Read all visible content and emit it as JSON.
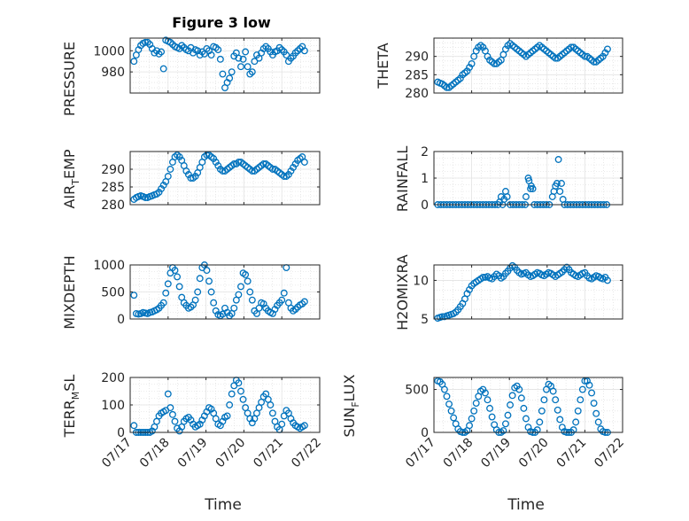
{
  "figure": {
    "title": "Figure 3 low",
    "marker_color": "#0072BD"
  },
  "chart_data": [
    {
      "type": "scatter",
      "title": "Figure 3 low",
      "ylabel": "PRESSURE",
      "ylim": [
        960,
        1012
      ],
      "yticks": [
        980,
        1000
      ],
      "xlim": [
        0,
        5
      ],
      "xticks": [
        "07/17",
        "07/18",
        "07/19",
        "07/20",
        "07/21",
        "07/22"
      ],
      "x": [
        0.1,
        0.16,
        0.22,
        0.28,
        0.34,
        0.4,
        0.46,
        0.52,
        0.58,
        0.64,
        0.7,
        0.76,
        0.82,
        0.88,
        0.94,
        1.0,
        1.06,
        1.12,
        1.18,
        1.24,
        1.3,
        1.36,
        1.42,
        1.48,
        1.54,
        1.6,
        1.66,
        1.72,
        1.78,
        1.84,
        1.9,
        1.96,
        2.02,
        2.08,
        2.14,
        2.2,
        2.26,
        2.32,
        2.38,
        2.44,
        2.5,
        2.56,
        2.62,
        2.68,
        2.74,
        2.8,
        2.86,
        2.92,
        2.98,
        3.04,
        3.1,
        3.16,
        3.22,
        3.28,
        3.34,
        3.4,
        3.46,
        3.52,
        3.58,
        3.64,
        3.7,
        3.76,
        3.82,
        3.88,
        3.94,
        4.0,
        4.06,
        4.12,
        4.18,
        4.24,
        4.3,
        4.36,
        4.42,
        4.48,
        4.54,
        4.6
      ],
      "y": [
        990,
        996,
        1001,
        1005,
        1007,
        1008,
        1008,
        1006,
        1002,
        998,
        1000,
        997,
        999,
        983,
        1010,
        1009,
        1008,
        1006,
        1004,
        1003,
        1002,
        1005,
        1003,
        1001,
        1000,
        1003,
        998,
        1001,
        1000,
        996,
        999,
        997,
        1002,
        1000,
        996,
        1004,
        1003,
        1001,
        992,
        978,
        965,
        970,
        974,
        980,
        995,
        998,
        993,
        985,
        992,
        999,
        985,
        978,
        980,
        990,
        996,
        993,
        998,
        1002,
        1004,
        1002,
        999,
        996,
        999,
        1000,
        1003,
        1001,
        999,
        996,
        990,
        993,
        995,
        998,
        1000,
        1002,
        1004,
        1000
      ]
    },
    {
      "type": "scatter",
      "ylabel": "THETA",
      "ylim": [
        280,
        295
      ],
      "yticks": [
        280,
        285,
        290
      ],
      "xlim": [
        0,
        5
      ],
      "xticks": [
        "07/17",
        "07/18",
        "07/19",
        "07/20",
        "07/21",
        "07/22"
      ],
      "x": [
        0.1,
        0.16,
        0.22,
        0.28,
        0.34,
        0.4,
        0.46,
        0.52,
        0.58,
        0.64,
        0.7,
        0.76,
        0.82,
        0.88,
        0.94,
        1.0,
        1.06,
        1.12,
        1.18,
        1.24,
        1.3,
        1.36,
        1.42,
        1.48,
        1.54,
        1.6,
        1.66,
        1.72,
        1.78,
        1.84,
        1.9,
        1.96,
        2.02,
        2.08,
        2.14,
        2.2,
        2.26,
        2.32,
        2.38,
        2.44,
        2.5,
        2.56,
        2.62,
        2.68,
        2.74,
        2.8,
        2.86,
        2.92,
        2.98,
        3.04,
        3.1,
        3.16,
        3.22,
        3.28,
        3.34,
        3.4,
        3.46,
        3.52,
        3.58,
        3.64,
        3.7,
        3.76,
        3.82,
        3.88,
        3.94,
        4.0,
        4.06,
        4.12,
        4.18,
        4.24,
        4.3,
        4.36,
        4.42,
        4.48,
        4.54,
        4.6
      ],
      "y": [
        283,
        282.7,
        282.5,
        282,
        281.5,
        281.5,
        282,
        282.5,
        283,
        283.5,
        284,
        285,
        285.5,
        286,
        287,
        288,
        290,
        291.5,
        292.5,
        293,
        292.5,
        291.5,
        290,
        289,
        288.5,
        288,
        288,
        288.5,
        289,
        290.5,
        292,
        293,
        293.5,
        293,
        292.5,
        292,
        291.5,
        291,
        290.5,
        290,
        290.5,
        291,
        291.5,
        292,
        292.5,
        293,
        292.5,
        292,
        291.5,
        291,
        290.5,
        290,
        289.5,
        289.5,
        290,
        290.5,
        291,
        291.5,
        292,
        292.5,
        292.5,
        292,
        291.5,
        291,
        290.5,
        290,
        290,
        289.5,
        289,
        288.5,
        288.5,
        289,
        289.5,
        290,
        291,
        292
      ]
    },
    {
      "type": "scatter",
      "ylabel": "AIR_TEMP",
      "ylim": [
        280,
        295
      ],
      "yticks": [
        280,
        285,
        290
      ],
      "xlim": [
        0,
        5
      ],
      "xticks": [
        "07/17",
        "07/18",
        "07/19",
        "07/20",
        "07/21",
        "07/22"
      ],
      "x": [
        0.1,
        0.16,
        0.22,
        0.28,
        0.34,
        0.4,
        0.46,
        0.52,
        0.58,
        0.64,
        0.7,
        0.76,
        0.82,
        0.88,
        0.94,
        1.0,
        1.06,
        1.12,
        1.18,
        1.24,
        1.3,
        1.36,
        1.42,
        1.48,
        1.54,
        1.6,
        1.66,
        1.72,
        1.78,
        1.84,
        1.9,
        1.96,
        2.02,
        2.08,
        2.14,
        2.2,
        2.26,
        2.32,
        2.38,
        2.44,
        2.5,
        2.56,
        2.62,
        2.68,
        2.74,
        2.8,
        2.86,
        2.92,
        2.98,
        3.04,
        3.1,
        3.16,
        3.22,
        3.28,
        3.34,
        3.4,
        3.46,
        3.52,
        3.58,
        3.64,
        3.7,
        3.76,
        3.82,
        3.88,
        3.94,
        4.0,
        4.06,
        4.12,
        4.18,
        4.24,
        4.3,
        4.36,
        4.42,
        4.48,
        4.54,
        4.6
      ],
      "y": [
        281.5,
        282,
        282.3,
        282.5,
        282.3,
        282,
        282,
        282.3,
        282.5,
        282.8,
        283,
        283.5,
        284.5,
        285.5,
        286.5,
        288,
        290,
        292,
        293.5,
        294,
        293.5,
        292.5,
        291,
        289.5,
        288.5,
        287.5,
        287.5,
        288,
        289,
        290.5,
        292,
        293.5,
        294,
        294,
        293.5,
        293,
        292,
        291,
        290,
        289.5,
        289.5,
        290,
        290.5,
        291,
        291.5,
        291.5,
        292,
        292,
        291.5,
        291,
        290.5,
        290,
        289.5,
        289.5,
        290,
        290.5,
        291,
        291.5,
        291.5,
        291,
        290.5,
        290,
        290,
        289.5,
        289,
        288.5,
        288,
        288,
        288.5,
        289.5,
        290.5,
        291.5,
        292.5,
        293,
        293.5,
        292
      ]
    },
    {
      "type": "scatter",
      "ylabel": "RAINFALL",
      "ylim": [
        0,
        2
      ],
      "yticks": [
        0,
        1,
        2
      ],
      "xlim": [
        0,
        5
      ],
      "xticks": [
        "07/17",
        "07/18",
        "07/19",
        "07/20",
        "07/21",
        "07/22"
      ],
      "x": [
        0.1,
        0.18,
        0.26,
        0.34,
        0.42,
        0.5,
        0.58,
        0.66,
        0.74,
        0.82,
        0.9,
        0.98,
        1.06,
        1.14,
        1.22,
        1.3,
        1.38,
        1.46,
        1.54,
        1.62,
        1.7,
        1.74,
        1.78,
        1.82,
        1.86,
        1.9,
        1.94,
        2.02,
        2.1,
        2.18,
        2.26,
        2.34,
        2.42,
        2.44,
        2.5,
        2.52,
        2.56,
        2.58,
        2.62,
        2.66,
        2.74,
        2.82,
        2.9,
        2.98,
        3.06,
        3.14,
        3.18,
        3.22,
        3.26,
        3.3,
        3.34,
        3.38,
        3.42,
        3.46,
        3.54,
        3.62,
        3.7,
        3.78,
        3.86,
        3.94,
        4.02,
        4.1,
        4.18,
        4.26,
        4.34,
        4.42,
        4.5,
        4.58
      ],
      "y": [
        0,
        0,
        0,
        0,
        0,
        0,
        0,
        0,
        0,
        0,
        0,
        0,
        0,
        0,
        0,
        0,
        0,
        0,
        0,
        0,
        0,
        0.1,
        0.3,
        0,
        0.2,
        0.5,
        0.3,
        0,
        0,
        0,
        0,
        0,
        0,
        0.3,
        1.0,
        0.9,
        0.6,
        0.7,
        0.6,
        0,
        0,
        0,
        0,
        0,
        0,
        0.3,
        0.5,
        0.7,
        0.8,
        1.7,
        0.5,
        0.8,
        0.2,
        0,
        0,
        0,
        0,
        0,
        0,
        0,
        0,
        0,
        0,
        0,
        0,
        0,
        0,
        0
      ]
    },
    {
      "type": "scatter",
      "ylabel": "MIXDEPTH",
      "ylim": [
        0,
        1000
      ],
      "yticks": [
        0,
        500,
        1000
      ],
      "xlim": [
        0,
        5
      ],
      "xticks": [
        "07/17",
        "07/18",
        "07/19",
        "07/20",
        "07/21",
        "07/22"
      ],
      "x": [
        0.1,
        0.16,
        0.22,
        0.28,
        0.34,
        0.4,
        0.46,
        0.52,
        0.58,
        0.64,
        0.7,
        0.76,
        0.82,
        0.88,
        0.94,
        1.0,
        1.06,
        1.12,
        1.18,
        1.24,
        1.3,
        1.36,
        1.42,
        1.48,
        1.54,
        1.6,
        1.66,
        1.72,
        1.78,
        1.84,
        1.9,
        1.96,
        2.02,
        2.08,
        2.14,
        2.2,
        2.26,
        2.32,
        2.38,
        2.44,
        2.5,
        2.56,
        2.62,
        2.68,
        2.74,
        2.8,
        2.86,
        2.92,
        2.98,
        3.04,
        3.1,
        3.16,
        3.22,
        3.28,
        3.34,
        3.4,
        3.46,
        3.52,
        3.58,
        3.64,
        3.7,
        3.76,
        3.82,
        3.88,
        3.94,
        4.0,
        4.06,
        4.12,
        4.18,
        4.24,
        4.3,
        4.36,
        4.42,
        4.48,
        4.54,
        4.6
      ],
      "y": [
        440,
        100,
        90,
        100,
        120,
        110,
        100,
        120,
        130,
        150,
        170,
        200,
        250,
        300,
        480,
        650,
        850,
        950,
        900,
        780,
        600,
        400,
        300,
        250,
        200,
        220,
        260,
        350,
        500,
        750,
        950,
        1000,
        900,
        700,
        500,
        300,
        150,
        80,
        60,
        90,
        200,
        120,
        60,
        100,
        200,
        350,
        450,
        600,
        850,
        820,
        700,
        500,
        350,
        150,
        100,
        200,
        300,
        280,
        200,
        150,
        120,
        100,
        180,
        250,
        300,
        350,
        480,
        950,
        300,
        200,
        150,
        180,
        220,
        260,
        280,
        320
      ]
    },
    {
      "type": "scatter",
      "ylabel": "H2OMIXRA",
      "ylim": [
        5,
        12
      ],
      "yticks": [
        5,
        10
      ],
      "xlim": [
        0,
        5
      ],
      "xticks": [
        "07/17",
        "07/18",
        "07/19",
        "07/20",
        "07/21",
        "07/22"
      ],
      "x": [
        0.1,
        0.16,
        0.22,
        0.28,
        0.34,
        0.4,
        0.46,
        0.52,
        0.58,
        0.64,
        0.7,
        0.76,
        0.82,
        0.88,
        0.94,
        1.0,
        1.06,
        1.12,
        1.18,
        1.24,
        1.3,
        1.36,
        1.42,
        1.48,
        1.54,
        1.6,
        1.66,
        1.72,
        1.78,
        1.84,
        1.9,
        1.96,
        2.02,
        2.08,
        2.14,
        2.2,
        2.26,
        2.32,
        2.38,
        2.44,
        2.5,
        2.56,
        2.62,
        2.68,
        2.74,
        2.8,
        2.86,
        2.92,
        2.98,
        3.04,
        3.1,
        3.16,
        3.22,
        3.28,
        3.34,
        3.4,
        3.46,
        3.52,
        3.58,
        3.64,
        3.7,
        3.76,
        3.82,
        3.88,
        3.94,
        4.0,
        4.06,
        4.12,
        4.18,
        4.24,
        4.3,
        4.36,
        4.42,
        4.48,
        4.54,
        4.6
      ],
      "y": [
        5.1,
        5.2,
        5.3,
        5.3,
        5.4,
        5.5,
        5.6,
        5.7,
        5.9,
        6.2,
        6.6,
        7.0,
        7.6,
        8.3,
        8.8,
        9.3,
        9.6,
        9.8,
        10.0,
        10.2,
        10.4,
        10.4,
        10.5,
        10.3,
        10.2,
        10.5,
        10.8,
        10.6,
        10.3,
        10.5,
        10.9,
        11.2,
        11.6,
        11.9,
        11.7,
        11.3,
        11.0,
        10.8,
        10.9,
        11.0,
        10.7,
        10.5,
        10.6,
        10.8,
        11.0,
        10.9,
        10.7,
        10.6,
        10.8,
        11.0,
        10.9,
        10.7,
        10.5,
        10.7,
        10.9,
        11.1,
        11.4,
        11.7,
        11.4,
        11.0,
        10.8,
        10.6,
        10.5,
        10.7,
        10.9,
        11.0,
        10.6,
        10.3,
        10.2,
        10.4,
        10.6,
        10.5,
        10.3,
        10.2,
        10.4,
        10.0
      ]
    },
    {
      "type": "scatter",
      "ylabel": "TERR_MSL",
      "ylim": [
        0,
        200
      ],
      "yticks": [
        0,
        100,
        200
      ],
      "xlim": [
        0,
        5
      ],
      "xticks": [
        "07/17",
        "07/18",
        "07/19",
        "07/20",
        "07/21",
        "07/22"
      ],
      "x": [
        0.1,
        0.16,
        0.22,
        0.28,
        0.34,
        0.4,
        0.46,
        0.52,
        0.58,
        0.64,
        0.7,
        0.76,
        0.82,
        0.88,
        0.94,
        1.0,
        1.06,
        1.12,
        1.18,
        1.24,
        1.3,
        1.36,
        1.42,
        1.48,
        1.54,
        1.6,
        1.66,
        1.72,
        1.78,
        1.84,
        1.9,
        1.96,
        2.02,
        2.08,
        2.14,
        2.2,
        2.26,
        2.32,
        2.38,
        2.44,
        2.5,
        2.56,
        2.62,
        2.68,
        2.74,
        2.8,
        2.86,
        2.92,
        2.98,
        3.04,
        3.1,
        3.16,
        3.22,
        3.28,
        3.34,
        3.4,
        3.46,
        3.52,
        3.58,
        3.64,
        3.7,
        3.76,
        3.82,
        3.88,
        3.94,
        4.0,
        4.06,
        4.12,
        4.18,
        4.24,
        4.3,
        4.36,
        4.42,
        4.48,
        4.54,
        4.6
      ],
      "y": [
        25,
        0,
        0,
        0,
        0,
        0,
        0,
        0,
        5,
        20,
        40,
        60,
        70,
        75,
        80,
        140,
        90,
        65,
        40,
        15,
        5,
        20,
        40,
        50,
        55,
        45,
        30,
        20,
        25,
        30,
        45,
        60,
        75,
        90,
        85,
        70,
        50,
        30,
        25,
        40,
        55,
        60,
        100,
        140,
        170,
        190,
        180,
        150,
        120,
        90,
        70,
        50,
        35,
        50,
        70,
        90,
        110,
        130,
        140,
        120,
        100,
        70,
        40,
        20,
        10,
        30,
        60,
        80,
        70,
        50,
        35,
        25,
        20,
        15,
        20,
        25
      ]
    },
    {
      "type": "scatter",
      "ylabel": "SUN_FLUX",
      "ylim": [
        0,
        640
      ],
      "yticks": [
        0,
        500
      ],
      "xlim": [
        0,
        5
      ],
      "xticks": [
        "07/17",
        "07/18",
        "07/19",
        "07/20",
        "07/21",
        "07/22"
      ],
      "x": [
        0.1,
        0.16,
        0.22,
        0.28,
        0.34,
        0.4,
        0.46,
        0.52,
        0.58,
        0.64,
        0.7,
        0.76,
        0.82,
        0.88,
        0.94,
        1.0,
        1.06,
        1.12,
        1.18,
        1.24,
        1.3,
        1.36,
        1.42,
        1.48,
        1.54,
        1.6,
        1.66,
        1.72,
        1.78,
        1.84,
        1.9,
        1.96,
        2.02,
        2.08,
        2.14,
        2.2,
        2.26,
        2.32,
        2.38,
        2.44,
        2.5,
        2.56,
        2.62,
        2.68,
        2.74,
        2.8,
        2.86,
        2.92,
        2.98,
        3.04,
        3.1,
        3.16,
        3.22,
        3.28,
        3.34,
        3.4,
        3.46,
        3.52,
        3.58,
        3.64,
        3.7,
        3.76,
        3.82,
        3.88,
        3.94,
        4.0,
        4.06,
        4.12,
        4.18,
        4.24,
        4.3,
        4.36,
        4.42,
        4.48,
        4.54,
        4.6
      ],
      "y": [
        600,
        590,
        560,
        500,
        420,
        330,
        250,
        170,
        100,
        40,
        10,
        0,
        0,
        20,
        80,
        160,
        250,
        340,
        420,
        480,
        500,
        460,
        380,
        280,
        180,
        90,
        30,
        0,
        0,
        20,
        100,
        200,
        320,
        430,
        520,
        540,
        500,
        400,
        280,
        160,
        60,
        10,
        0,
        0,
        30,
        120,
        250,
        380,
        500,
        560,
        540,
        480,
        380,
        260,
        150,
        60,
        10,
        0,
        0,
        0,
        30,
        120,
        250,
        380,
        500,
        600,
        600,
        550,
        460,
        340,
        220,
        120,
        40,
        10,
        0,
        0
      ]
    }
  ],
  "axes_labels": {
    "pressure": "PRESSURE",
    "theta": "THETA",
    "air_temp": {
      "base": "AIR",
      "sub": "T",
      "rest": "EMP"
    },
    "rainfall": "RAINFALL",
    "mixdepth": "MIXDEPTH",
    "h2omixra": "H2OMIXRA",
    "terr_msl": {
      "base": "TERR",
      "sub": "M",
      "rest": "SL"
    },
    "sun_flux": {
      "base": "SUN",
      "sub": "F",
      "rest": "LUX"
    },
    "time_left": "Time",
    "time_right": "Time"
  }
}
